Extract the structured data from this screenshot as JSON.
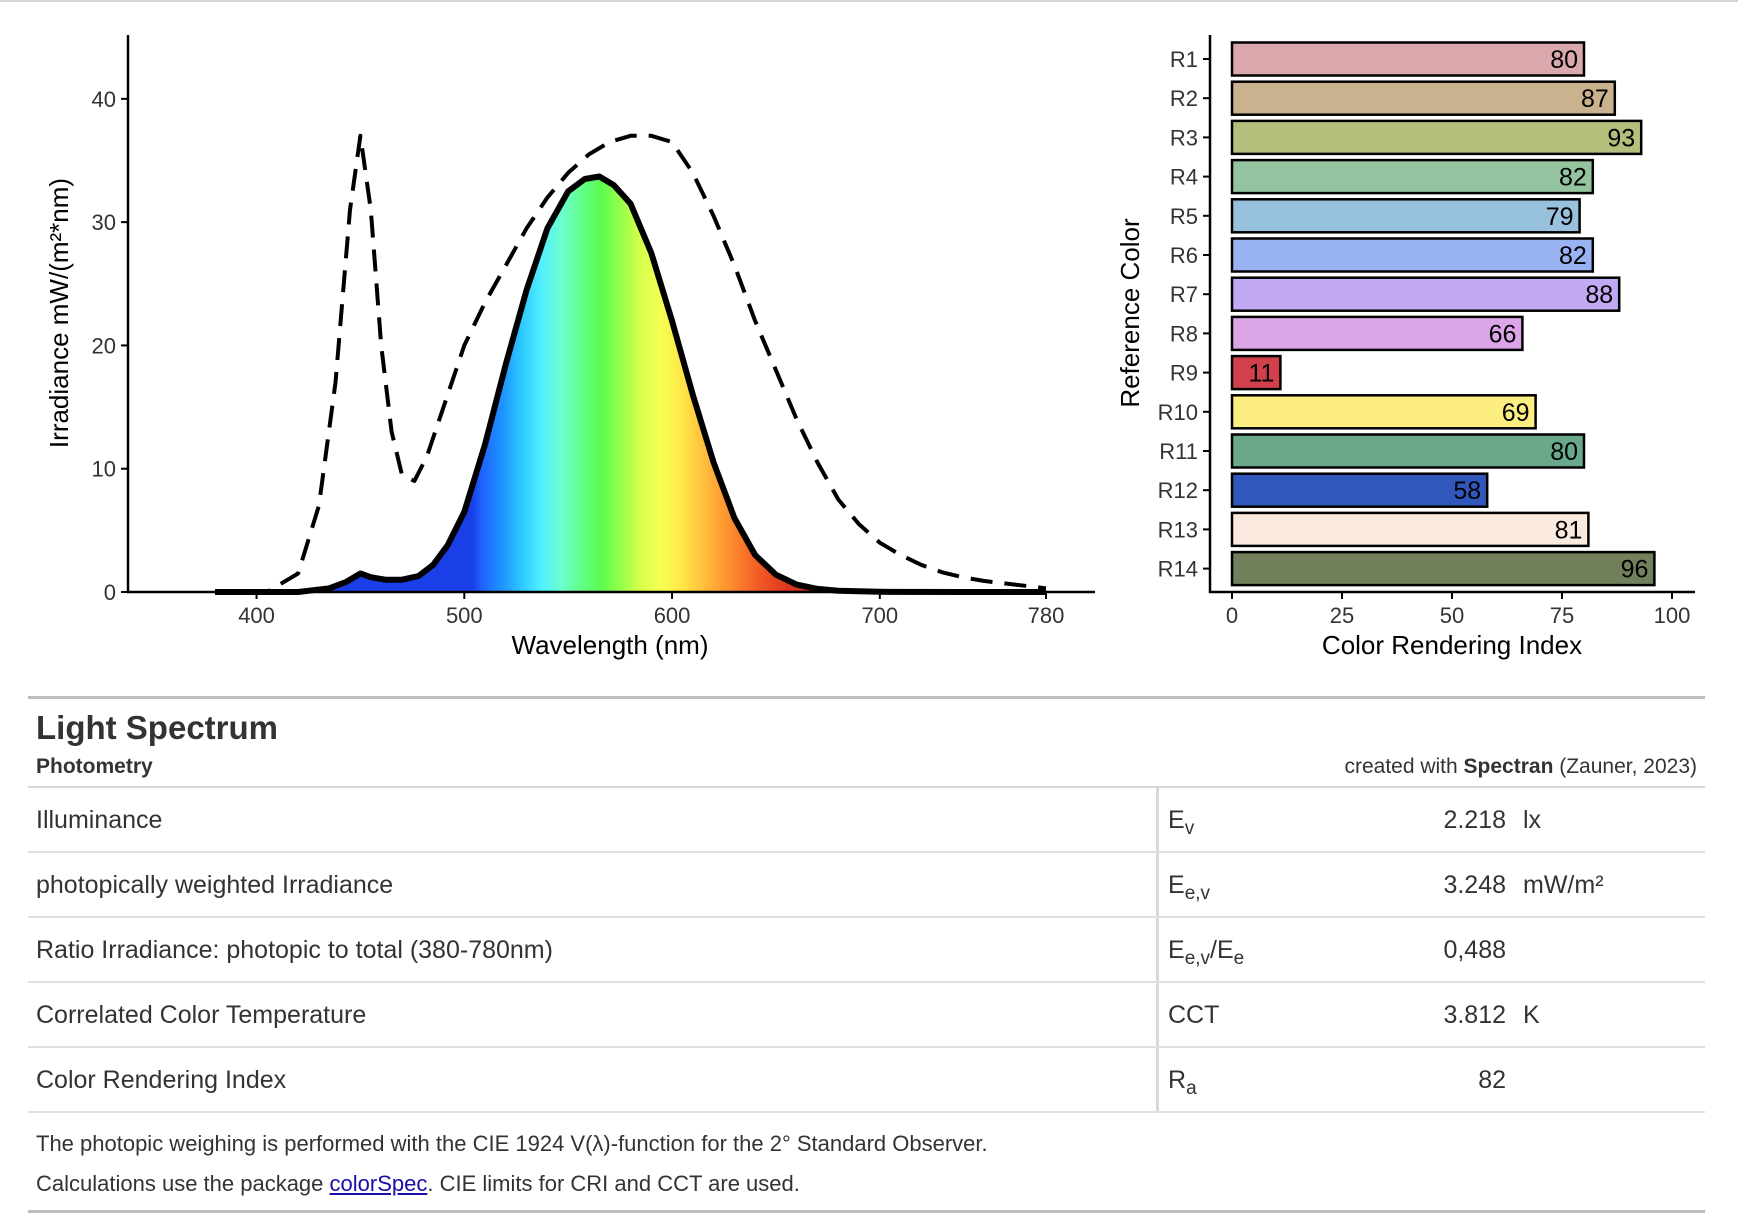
{
  "chart_data": [
    {
      "type": "area",
      "xlabel": "Wavelength (nm)",
      "ylabel": "Irradiance  mW/(m²*nm)",
      "xlim": [
        360,
        800
      ],
      "ylim": [
        0,
        45
      ],
      "x_ticks": [
        400,
        500,
        600,
        700,
        780
      ],
      "y_ticks": [
        0,
        10,
        20,
        30,
        40
      ],
      "grid": false,
      "series": [
        {
          "style": "solid-black-with-spectrum-fill",
          "x": [
            380,
            420,
            435,
            443,
            450,
            455,
            462,
            470,
            478,
            485,
            492,
            500,
            510,
            520,
            530,
            540,
            550,
            558,
            565,
            572,
            580,
            590,
            600,
            610,
            620,
            630,
            640,
            650,
            660,
            670,
            680,
            700,
            740,
            780
          ],
          "y": [
            0,
            0,
            0.3,
            0.8,
            1.5,
            1.2,
            1.0,
            1.0,
            1.3,
            2.2,
            3.8,
            6.5,
            12.0,
            18.5,
            24.5,
            29.5,
            32.5,
            33.5,
            33.7,
            33.0,
            31.5,
            27.5,
            22.0,
            16.0,
            10.5,
            6.0,
            3.0,
            1.4,
            0.6,
            0.25,
            0.1,
            0.02,
            0,
            0
          ]
        },
        {
          "style": "dashed-black",
          "x": [
            380,
            405,
            420,
            430,
            438,
            445,
            450,
            455,
            460,
            465,
            470,
            476,
            482,
            490,
            500,
            510,
            520,
            530,
            540,
            550,
            560,
            570,
            580,
            590,
            600,
            610,
            620,
            630,
            640,
            650,
            660,
            670,
            680,
            690,
            700,
            710,
            720,
            730,
            740,
            750,
            760,
            770,
            780
          ],
          "y": [
            0,
            0,
            1.5,
            7.0,
            17.0,
            31.0,
            37.0,
            31.0,
            20.0,
            13.0,
            9.5,
            9.0,
            11.0,
            15.0,
            20.0,
            23.5,
            26.5,
            29.5,
            32.0,
            34.0,
            35.5,
            36.5,
            37.0,
            37.0,
            36.5,
            34.0,
            30.5,
            26.5,
            22.0,
            18.0,
            14.0,
            10.5,
            7.5,
            5.5,
            4.0,
            3.0,
            2.2,
            1.6,
            1.2,
            0.9,
            0.7,
            0.5,
            0.3
          ]
        }
      ]
    },
    {
      "type": "bar",
      "orientation": "horizontal",
      "xlabel": "Color Rendering Index",
      "ylabel": "Reference Color",
      "xlim": [
        0,
        100
      ],
      "x_ticks": [
        0,
        25,
        50,
        75,
        100
      ],
      "categories": [
        "R1",
        "R2",
        "R3",
        "R4",
        "R5",
        "R6",
        "R7",
        "R8",
        "R9",
        "R10",
        "R11",
        "R12",
        "R13",
        "R14"
      ],
      "values": [
        80,
        87,
        93,
        82,
        79,
        82,
        88,
        66,
        11,
        69,
        80,
        58,
        81,
        96
      ],
      "colors": [
        "#dba8ad",
        "#c9b28d",
        "#b3c07b",
        "#93c49f",
        "#98c1dd",
        "#98b2f2",
        "#c2a9f4",
        "#dca5e8",
        "#d2404c",
        "#fcee80",
        "#69a88a",
        "#3057bb",
        "#fae9dd",
        "#717f5a"
      ],
      "grid": false
    }
  ],
  "panel": {
    "title": "Light Spectrum",
    "subtitle": "Photometry",
    "credit_prefix": "created with ",
    "credit_bold": "Spectran",
    "credit_suffix": " (Zauner, 2023)"
  },
  "table": [
    {
      "label": "Illuminance",
      "sym": "E",
      "sym_sub": "v",
      "value": "2.218",
      "unit": "lx"
    },
    {
      "label": "photopically weighted Irradiance",
      "sym": "E",
      "sym_sub": "e,v",
      "value": "3.248",
      "unit": "mW/m²"
    },
    {
      "label": "Ratio Irradiance: photopic to total (380-780nm)",
      "sym": "E",
      "sym_sub": "e,v",
      "sym2": "/E",
      "sym2_sub": "e",
      "value": "0,488",
      "unit": ""
    },
    {
      "label": "Correlated Color Temperature",
      "sym": "CCT",
      "sym_sub": "",
      "value": "3.812",
      "unit": "K"
    },
    {
      "label": "Color Rendering Index",
      "sym": "R",
      "sym_sub": "a",
      "value": "82",
      "unit": ""
    }
  ],
  "notes": {
    "line1": "The photopic weighing is performed with the CIE 1924 V(λ)-function for the 2° Standard Observer.",
    "line2_prefix": "Calculations use the package ",
    "line2_link": "colorSpec",
    "line2_suffix": ". CIE limits for CRI and CCT are used."
  }
}
